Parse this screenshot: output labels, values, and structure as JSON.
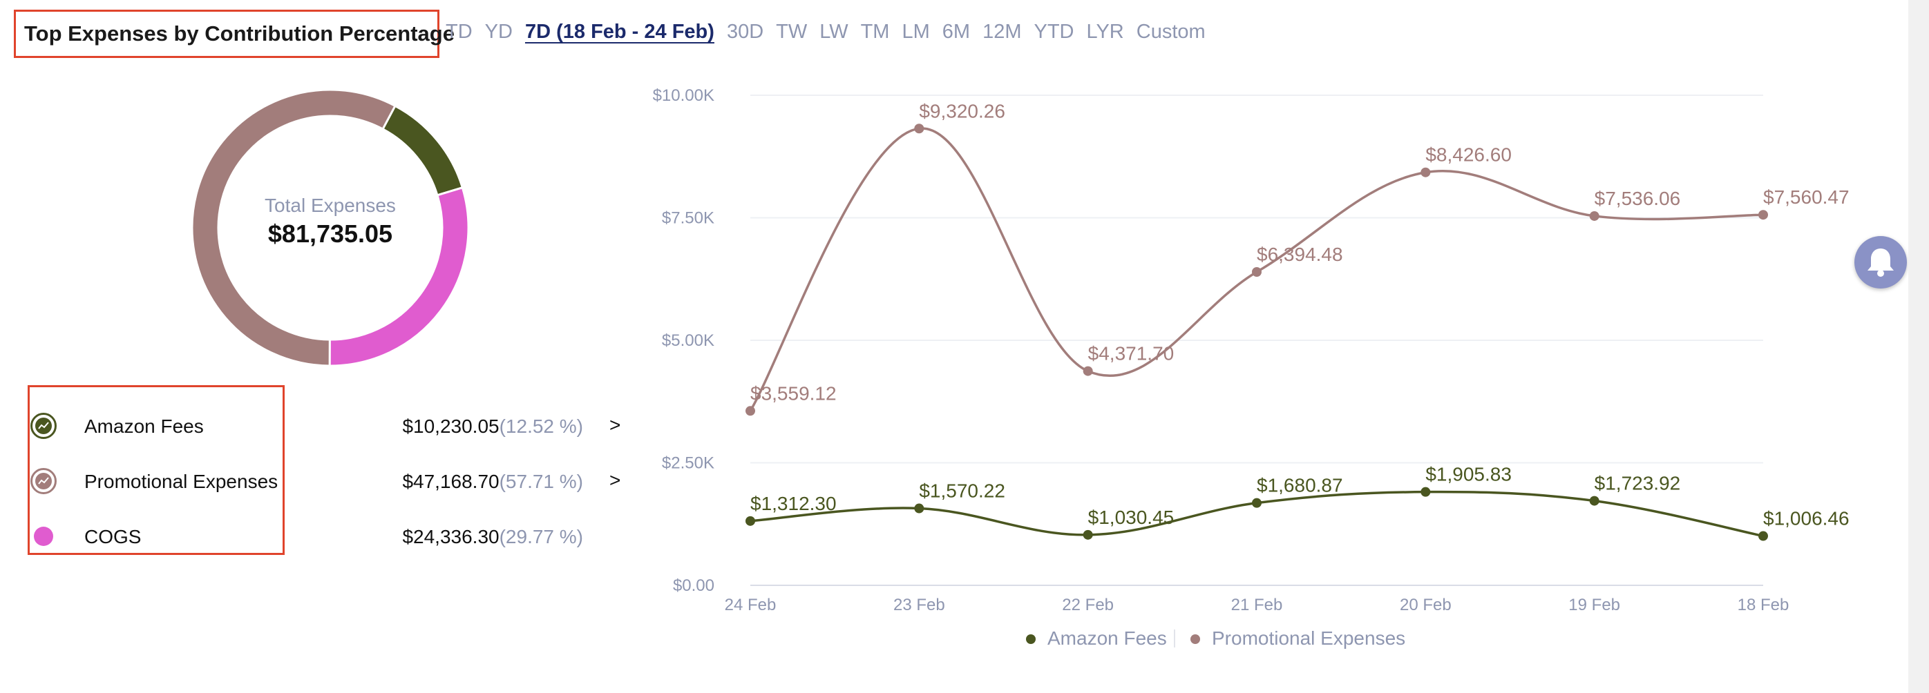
{
  "header": {
    "title": "Top Expenses by Contribution Percentage",
    "ranges": [
      "TD",
      "YD",
      "7D (18 Feb - 24 Feb)",
      "30D",
      "TW",
      "LW",
      "TM",
      "LM",
      "6M",
      "12M",
      "YTD",
      "LYR",
      "Custom"
    ],
    "active_range": "7D (18 Feb - 24 Feb)"
  },
  "donut": {
    "total_label": "Total Expenses",
    "total_value": "$81,735.05"
  },
  "expenses": [
    {
      "name": "Amazon Fees",
      "value": "$10,230.05",
      "pct": "(12.52 %)",
      "pct_value": 12.52,
      "color": "#4a5620",
      "icon": "trend-chart-icon",
      "has_arrow": true
    },
    {
      "name": "Promotional Expenses",
      "value": "$47,168.70",
      "pct": "(57.71 %)",
      "pct_value": 57.71,
      "color": "#a27d7b",
      "icon": "trend-chart-icon",
      "has_arrow": true
    },
    {
      "name": "COGS",
      "value": "$24,336.30",
      "pct": "(29.77 %)",
      "pct_value": 29.77,
      "color": "#e05ccf",
      "icon": "dot",
      "has_arrow": false
    }
  ],
  "arrow_glyph": ">",
  "chart_data": {
    "type": "line",
    "categories": [
      "24 Feb",
      "23 Feb",
      "22 Feb",
      "21 Feb",
      "20 Feb",
      "19 Feb",
      "18 Feb"
    ],
    "y_ticks": [
      "$0.00",
      "$2.50K",
      "$5.00K",
      "$7.50K",
      "$10.00K"
    ],
    "ylim": [
      0,
      10000
    ],
    "grid": true,
    "legend_position": "bottom",
    "series": [
      {
        "name": "Amazon Fees",
        "color": "#4a5620",
        "values": [
          1312.3,
          1570.22,
          1030.45,
          1680.87,
          1905.83,
          1723.92,
          1006.46
        ],
        "labels": [
          "$1,312.30",
          "$1,570.22",
          "$1,030.45",
          "$1,680.87",
          "$1,905.83",
          "$1,723.92",
          "$1,006.46"
        ]
      },
      {
        "name": "Promotional Expenses",
        "color": "#a27d7b",
        "values": [
          3559.12,
          9320.26,
          4371.7,
          6394.48,
          8426.6,
          7536.06,
          7560.47
        ],
        "labels": [
          "$3,559.12",
          "$9,320.26",
          "$4,371.70",
          "$6,394.48",
          "$8,426.60",
          "$7,536.06",
          "$7,560.47"
        ]
      }
    ]
  },
  "colors": {
    "accent_active": "#1b2a6b",
    "muted_text": "#8e96b0",
    "highlight_border": "#e0442c",
    "bell_bg": "#8a92c6"
  }
}
